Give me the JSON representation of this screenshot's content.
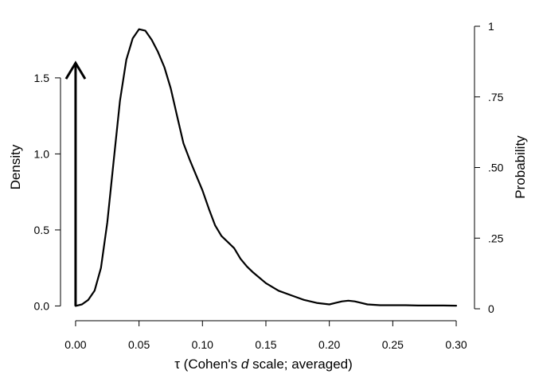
{
  "chart_data": {
    "type": "line",
    "xlabel": {
      "prefix": "τ (Cohen's ",
      "italic": "d",
      "suffix": " scale; averaged)"
    },
    "ylabel_left": "Density",
    "ylabel_right": "Probability",
    "xlim": [
      -0.01,
      0.305
    ],
    "ylim_left": [
      -0.05,
      1.85
    ],
    "ylim_right": [
      0,
      1
    ],
    "x_ticks": [
      0.0,
      0.05,
      0.1,
      0.15,
      0.2,
      0.25,
      0.3
    ],
    "x_tick_labels": [
      "0.00",
      "0.05",
      "0.10",
      "0.15",
      "0.20",
      "0.25",
      "0.30"
    ],
    "y_left_ticks": [
      0.0,
      0.5,
      1.0,
      1.5
    ],
    "y_left_tick_labels": [
      "0.0",
      "0.5",
      "1.0",
      "1.5"
    ],
    "y_right_ticks": [
      0,
      0.25,
      0.5,
      0.75,
      1
    ],
    "y_right_tick_labels": [
      "0",
      ".25",
      ".50",
      ".75",
      "1"
    ],
    "grid": false,
    "spike": {
      "x": 0.0,
      "probability": 0.87
    },
    "series": [
      {
        "x": [
          0.0,
          0.005,
          0.01,
          0.015,
          0.02,
          0.025,
          0.03,
          0.035,
          0.04,
          0.045,
          0.05,
          0.055,
          0.06,
          0.065,
          0.07,
          0.075,
          0.08,
          0.085,
          0.09,
          0.095,
          0.1,
          0.105,
          0.11,
          0.115,
          0.12,
          0.125,
          0.13,
          0.135,
          0.14,
          0.15,
          0.16,
          0.17,
          0.18,
          0.19,
          0.2,
          0.205,
          0.21,
          0.215,
          0.22,
          0.225,
          0.23,
          0.24,
          0.25,
          0.26,
          0.27,
          0.28,
          0.29,
          0.3
        ],
        "values": [
          0.0,
          0.01,
          0.04,
          0.1,
          0.25,
          0.55,
          0.95,
          1.35,
          1.62,
          1.76,
          1.82,
          1.81,
          1.75,
          1.67,
          1.57,
          1.43,
          1.25,
          1.07,
          0.96,
          0.86,
          0.76,
          0.64,
          0.53,
          0.46,
          0.42,
          0.38,
          0.31,
          0.26,
          0.22,
          0.15,
          0.1,
          0.07,
          0.04,
          0.02,
          0.01,
          0.02,
          0.03,
          0.035,
          0.03,
          0.02,
          0.01,
          0.005,
          0.005,
          0.005,
          0.003,
          0.003,
          0.003,
          0.002
        ]
      }
    ]
  }
}
